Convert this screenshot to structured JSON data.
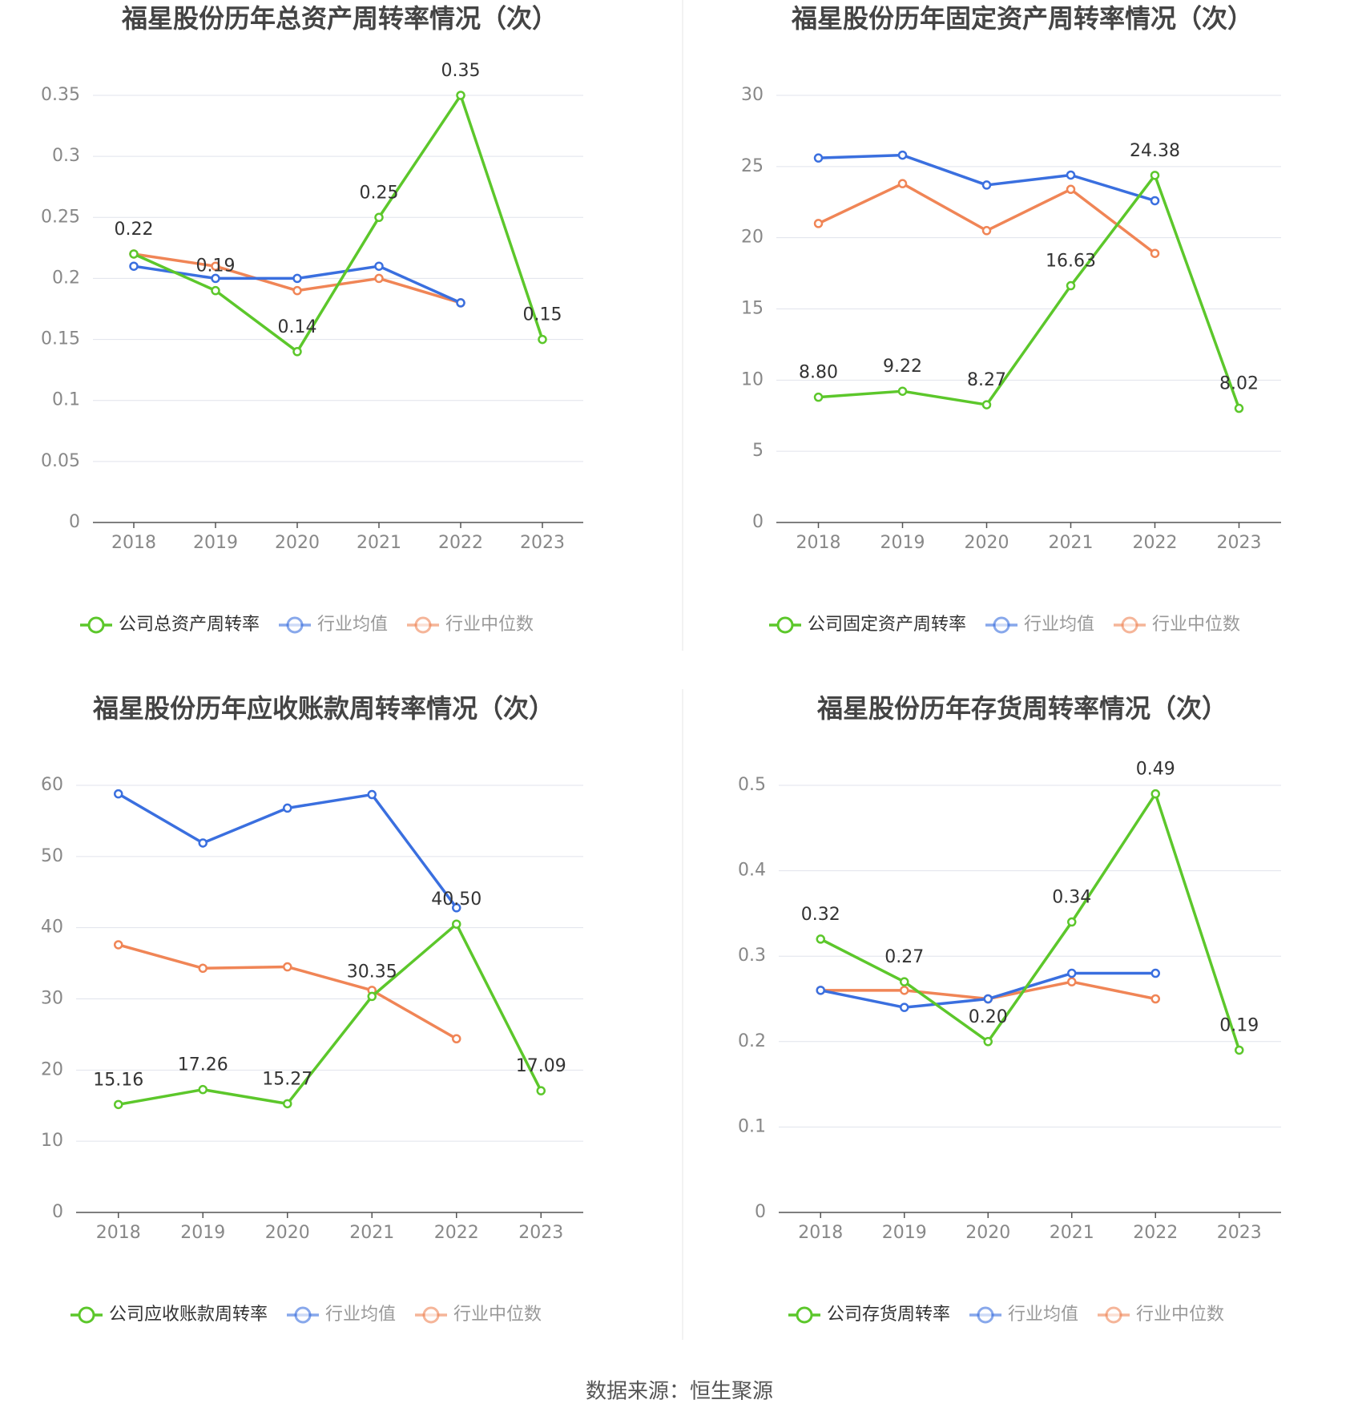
{
  "chart_data": [
    {
      "type": "line",
      "title": "福星股份历年总资产周转率情况（次）",
      "categories": [
        "2018",
        "2019",
        "2020",
        "2021",
        "2022",
        "2023"
      ],
      "series": [
        {
          "name": "公司总资产周转率",
          "color": "#5cc72b",
          "values": [
            0.22,
            0.19,
            0.14,
            0.25,
            0.35,
            0.15
          ]
        },
        {
          "name": "行业均值",
          "color": "#3a6fdf",
          "values": [
            0.21,
            0.2,
            0.2,
            0.21,
            0.18,
            null
          ]
        },
        {
          "name": "行业中位数",
          "color": "#f08556",
          "values": [
            0.22,
            0.21,
            0.19,
            0.2,
            0.18,
            null
          ]
        }
      ],
      "ylim": [
        0,
        0.35
      ],
      "yticks": [
        0,
        0.05,
        0.1,
        0.15,
        0.2,
        0.25,
        0.3,
        0.35
      ],
      "grid": true,
      "legend": "bottom"
    },
    {
      "type": "line",
      "title": "福星股份历年固定资产周转率情况（次）",
      "categories": [
        "2018",
        "2019",
        "2020",
        "2021",
        "2022",
        "2023"
      ],
      "series": [
        {
          "name": "公司固定资产周转率",
          "color": "#5cc72b",
          "values": [
            8.8,
            9.22,
            8.27,
            16.63,
            24.38,
            8.02
          ],
          "value_labels": [
            "8.80",
            "9.22",
            "8.27",
            "16.63",
            "24.38",
            "8.02"
          ]
        },
        {
          "name": "行业均值",
          "color": "#3a6fdf",
          "values": [
            25.6,
            25.8,
            23.7,
            24.4,
            22.6,
            null
          ]
        },
        {
          "name": "行业中位数",
          "color": "#f08556",
          "values": [
            21.0,
            23.8,
            20.5,
            23.4,
            18.9,
            null
          ]
        }
      ],
      "ylim": [
        0,
        30
      ],
      "yticks": [
        0,
        5,
        10,
        15,
        20,
        25,
        30
      ],
      "grid": true,
      "legend": "bottom"
    },
    {
      "type": "line",
      "title": "福星股份历年应收账款周转率情况（次）",
      "categories": [
        "2018",
        "2019",
        "2020",
        "2021",
        "2022",
        "2023"
      ],
      "series": [
        {
          "name": "公司应收账款周转率",
          "color": "#5cc72b",
          "values": [
            15.16,
            17.26,
            15.27,
            30.35,
            40.5,
            17.09
          ],
          "value_labels": [
            "15.16",
            "17.26",
            "15.27",
            "30.35",
            "40.50",
            "17.09"
          ]
        },
        {
          "name": "行业均值",
          "color": "#3a6fdf",
          "values": [
            58.8,
            51.9,
            56.8,
            58.7,
            42.8,
            null
          ]
        },
        {
          "name": "行业中位数",
          "color": "#f08556",
          "values": [
            37.6,
            34.3,
            34.5,
            31.2,
            24.4,
            null
          ]
        }
      ],
      "ylim": [
        0,
        60
      ],
      "yticks": [
        0,
        10,
        20,
        30,
        40,
        50,
        60
      ],
      "grid": true,
      "legend": "bottom"
    },
    {
      "type": "line",
      "title": "福星股份历年存货周转率情况（次）",
      "categories": [
        "2018",
        "2019",
        "2020",
        "2021",
        "2022",
        "2023"
      ],
      "series": [
        {
          "name": "公司存货周转率",
          "color": "#5cc72b",
          "values": [
            0.32,
            0.27,
            0.2,
            0.34,
            0.49,
            0.19
          ],
          "value_labels": [
            "0.32",
            "0.27",
            "0.20",
            "0.34",
            "0.49",
            "0.19"
          ]
        },
        {
          "name": "行业均值",
          "color": "#3a6fdf",
          "values": [
            0.26,
            0.24,
            0.25,
            0.28,
            0.28,
            null
          ]
        },
        {
          "name": "行业中位数",
          "color": "#f08556",
          "values": [
            0.26,
            0.26,
            0.25,
            0.27,
            0.25,
            null
          ]
        }
      ],
      "ylim": [
        0,
        0.5
      ],
      "yticks": [
        0,
        0.1,
        0.2,
        0.3,
        0.4,
        0.5
      ],
      "grid": true,
      "legend": "bottom"
    }
  ],
  "source": "数据来源：恒生聚源"
}
